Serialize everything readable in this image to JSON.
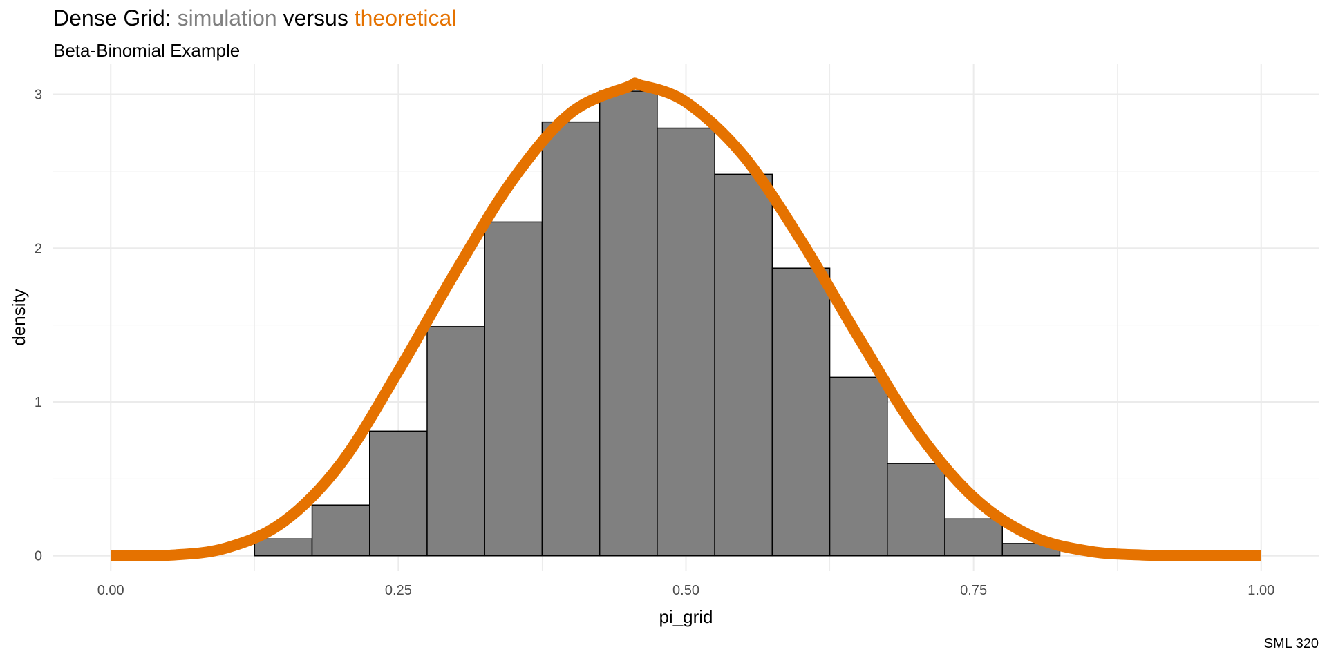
{
  "title": {
    "prefix": "Dense Grid: ",
    "part_simulation": "simulation",
    "middle": " versus ",
    "part_theoretical": "theoretical"
  },
  "subtitle": "Beta-Binomial Example",
  "caption": "SML 320",
  "colors": {
    "simulation": "#808080",
    "theoretical": "#E57200",
    "bar_fill": "#808080",
    "bar_outline": "#000000",
    "grid": "#ebebeb",
    "tick_text": "#4d4d4d"
  },
  "chart_data": {
    "type": "bar",
    "subtype": "histogram_with_density_curve",
    "xlabel": "pi_grid",
    "ylabel": "density",
    "xlim": [
      -0.05,
      1.05
    ],
    "ylim": [
      -0.1,
      3.2
    ],
    "x_ticks": [
      0.0,
      0.25,
      0.5,
      0.75,
      1.0
    ],
    "x_tick_labels": [
      "0.00",
      "0.25",
      "0.50",
      "0.75",
      "1.00"
    ],
    "y_ticks": [
      0,
      1,
      2,
      3
    ],
    "y_tick_labels": [
      "0",
      "1",
      "2",
      "3"
    ],
    "grid": true,
    "histogram": {
      "bin_width": 0.05,
      "bins": [
        {
          "x0": 0.125,
          "x1": 0.175,
          "density": 0.11
        },
        {
          "x0": 0.175,
          "x1": 0.225,
          "density": 0.33
        },
        {
          "x0": 0.225,
          "x1": 0.275,
          "density": 0.81
        },
        {
          "x0": 0.275,
          "x1": 0.325,
          "density": 1.49
        },
        {
          "x0": 0.325,
          "x1": 0.375,
          "density": 2.17
        },
        {
          "x0": 0.375,
          "x1": 0.425,
          "density": 2.82
        },
        {
          "x0": 0.425,
          "x1": 0.475,
          "density": 3.02
        },
        {
          "x0": 0.475,
          "x1": 0.525,
          "density": 2.78
        },
        {
          "x0": 0.525,
          "x1": 0.575,
          "density": 2.48
        },
        {
          "x0": 0.575,
          "x1": 0.625,
          "density": 1.87
        },
        {
          "x0": 0.625,
          "x1": 0.675,
          "density": 1.16
        },
        {
          "x0": 0.675,
          "x1": 0.725,
          "density": 0.6
        },
        {
          "x0": 0.725,
          "x1": 0.775,
          "density": 0.24
        },
        {
          "x0": 0.775,
          "x1": 0.825,
          "density": 0.08
        }
      ]
    },
    "curve": {
      "x": [
        0.0,
        0.05,
        0.1,
        0.15,
        0.2,
        0.25,
        0.3,
        0.35,
        0.4,
        0.45,
        0.46,
        0.5,
        0.55,
        0.6,
        0.65,
        0.7,
        0.75,
        0.8,
        0.85,
        0.9,
        0.95,
        1.0
      ],
      "y": [
        0.0,
        0.003,
        0.05,
        0.22,
        0.6,
        1.2,
        1.85,
        2.45,
        2.88,
        3.05,
        3.06,
        2.95,
        2.6,
        2.05,
        1.42,
        0.82,
        0.38,
        0.13,
        0.03,
        0.004,
        0.0003,
        0.0
      ]
    }
  }
}
